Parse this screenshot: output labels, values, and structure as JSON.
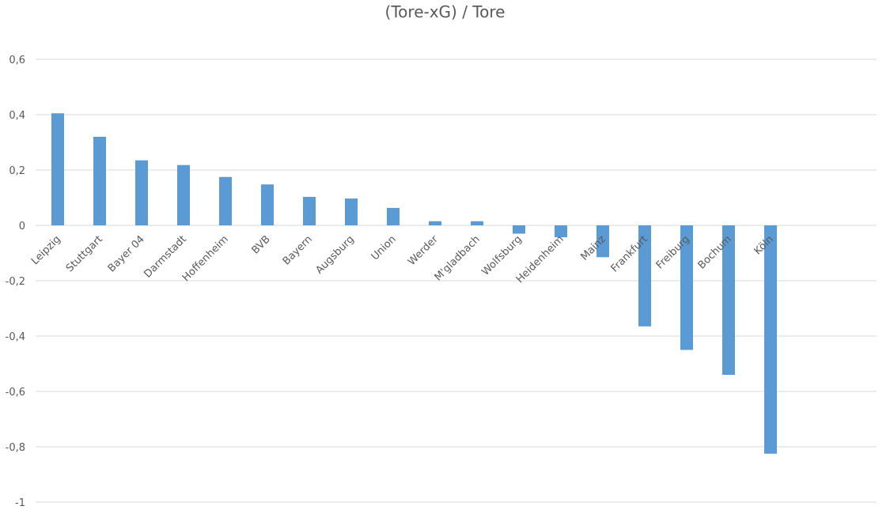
{
  "chart_data": {
    "type": "bar",
    "title": "(Tore-xG) / Tore",
    "xlabel": "",
    "ylabel": "",
    "ylim": [
      -1,
      0.6
    ],
    "yticks": [
      0.6,
      0.4,
      0.2,
      0,
      -0.2,
      -0.4,
      -0.6,
      -0.8,
      -1
    ],
    "ytick_labels": [
      "0,6",
      "0,4",
      "0,2",
      "0",
      "-0,2",
      "-0,4",
      "-0,6",
      "-0,8",
      "-1"
    ],
    "grid": true,
    "legend": "none",
    "bar_color": "#5B9BD5",
    "categories": [
      "Leipzig",
      "Stuttgart",
      "Bayer 04",
      "Darmstadt",
      "Hoffenheim",
      "BVB",
      "Bayern",
      "Augsburg",
      "Union",
      "Werder",
      "M'gladbach",
      "Wolfsburg",
      "Heidenheim",
      "Mainz",
      "Frankfurt",
      "Freiburg",
      "Bochum",
      "Köln"
    ],
    "values": [
      0.405,
      0.32,
      0.235,
      0.218,
      0.175,
      0.148,
      0.103,
      0.097,
      0.063,
      0.015,
      0.015,
      -0.03,
      -0.043,
      -0.115,
      -0.365,
      -0.45,
      -0.54,
      -0.825
    ]
  }
}
